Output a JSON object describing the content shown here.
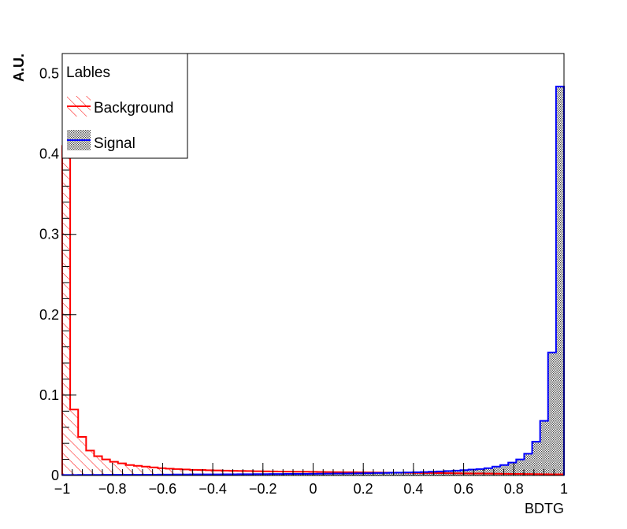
{
  "chart_data": {
    "type": "histogram",
    "xlabel": "BDTG",
    "ylabel": "A.U.",
    "xlim": [
      -1,
      1
    ],
    "ylim": [
      0,
      0.525
    ],
    "x_ticks": [
      -1,
      -0.8,
      -0.6,
      -0.4,
      -0.2,
      0,
      0.2,
      0.4,
      0.6,
      0.8,
      1
    ],
    "x_tick_labels": [
      "−1",
      "−0.8",
      "−0.6",
      "−0.4",
      "−0.2",
      "0",
      "0.2",
      "0.4",
      "0.6",
      "0.8",
      "1"
    ],
    "y_ticks": [
      0,
      0.1,
      0.2,
      0.3,
      0.4,
      0.5
    ],
    "y_tick_labels": [
      "0",
      "0.1",
      "0.2",
      "0.3",
      "0.4",
      "0.5"
    ],
    "bins": 63,
    "legend": {
      "title": "Lables",
      "placement": "top-left",
      "entries": [
        "Background",
        "Signal"
      ]
    },
    "series": [
      {
        "name": "Background",
        "color": "#ff0000",
        "fill": "red diagonal hatch",
        "values": [
          0.41,
          0.082,
          0.048,
          0.031,
          0.024,
          0.02,
          0.017,
          0.015,
          0.013,
          0.012,
          0.011,
          0.01,
          0.009,
          0.0085,
          0.008,
          0.0075,
          0.007,
          0.0068,
          0.0065,
          0.0063,
          0.006,
          0.0058,
          0.0056,
          0.0055,
          0.0053,
          0.0052,
          0.005,
          0.0049,
          0.0048,
          0.0047,
          0.0046,
          0.0045,
          0.0044,
          0.0043,
          0.0042,
          0.0041,
          0.004,
          0.0039,
          0.0038,
          0.0037,
          0.0036,
          0.0035,
          0.0034,
          0.0033,
          0.0032,
          0.0031,
          0.003,
          0.0029,
          0.0028,
          0.0027,
          0.0026,
          0.0025,
          0.0024,
          0.0023,
          0.0022,
          0.0021,
          0.002,
          0.0019,
          0.0018,
          0.0017,
          0.0016,
          0.0015,
          0.0015
        ]
      },
      {
        "name": "Signal",
        "color": "#0000ff",
        "fill": "grey dotted",
        "values": [
          0.0006,
          0.0006,
          0.0007,
          0.0007,
          0.0007,
          0.0008,
          0.0008,
          0.0008,
          0.0009,
          0.0009,
          0.001,
          0.001,
          0.0011,
          0.0011,
          0.0012,
          0.0012,
          0.0013,
          0.0013,
          0.0014,
          0.0014,
          0.0015,
          0.0015,
          0.0016,
          0.0016,
          0.0017,
          0.0017,
          0.0018,
          0.0018,
          0.0019,
          0.002,
          0.002,
          0.0021,
          0.0022,
          0.0023,
          0.0024,
          0.0025,
          0.0026,
          0.0027,
          0.0028,
          0.003,
          0.0032,
          0.0034,
          0.0036,
          0.0038,
          0.004,
          0.0043,
          0.0046,
          0.005,
          0.0055,
          0.006,
          0.0066,
          0.0073,
          0.008,
          0.009,
          0.011,
          0.013,
          0.016,
          0.02,
          0.027,
          0.042,
          0.068,
          0.153,
          0.484
        ]
      }
    ]
  }
}
